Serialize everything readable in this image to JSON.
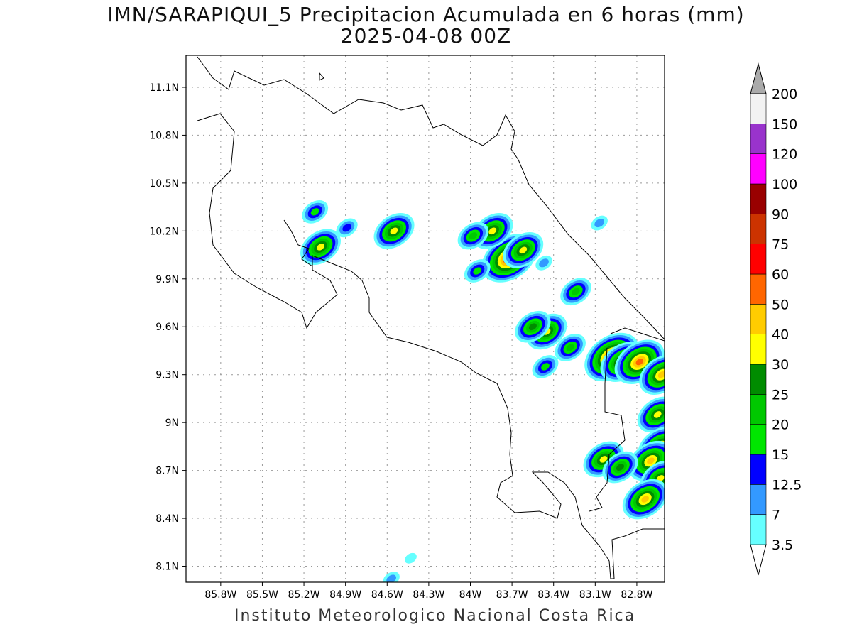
{
  "title": {
    "line1": "IMN/SARAPIQUI_5 Precipitacion Acumulada en 6 horas (mm)",
    "line2": "2025-04-08 00Z"
  },
  "footer": "Instituto Meteorologico Nacional Costa Rica",
  "map": {
    "lon_range": [
      -86.05,
      -82.6
    ],
    "lat_range": [
      8.0,
      11.3
    ],
    "x_ticks": [
      -85.8,
      -85.5,
      -85.2,
      -84.9,
      -84.6,
      -84.3,
      -84.0,
      -83.7,
      -83.4,
      -83.1,
      -82.8
    ],
    "x_tick_labels": [
      "85.8W",
      "85.5W",
      "85.2W",
      "84.9W",
      "84.6W",
      "84.3W",
      "84W",
      "83.7W",
      "83.4W",
      "83.1W",
      "82.8W"
    ],
    "y_ticks": [
      8.1,
      8.4,
      8.7,
      9.0,
      9.3,
      9.6,
      9.9,
      10.2,
      10.5,
      10.8,
      11.1
    ],
    "y_tick_labels": [
      "8.1N",
      "8.4N",
      "8.7N",
      "9N",
      "9.3N",
      "9.6N",
      "9.9N",
      "10.2N",
      "10.5N",
      "10.8N",
      "11.1N"
    ],
    "grid": true,
    "grid_style": "dotted"
  },
  "colorbar": {
    "levels": [
      "3.5",
      "7",
      "12.5",
      "15",
      "20",
      "25",
      "30",
      "40",
      "50",
      "60",
      "75",
      "90",
      "100",
      "120",
      "150",
      "200"
    ],
    "colors": [
      "#66ffff",
      "#3399ff",
      "#0000ff",
      "#00e600",
      "#00c800",
      "#008c00",
      "#ffff00",
      "#ffcc00",
      "#ff6600",
      "#ff0000",
      "#cc3300",
      "#990000",
      "#ff00ff",
      "#9933cc",
      "#f2f2f2",
      "#aaaaaa"
    ],
    "under_color": "#ffffff",
    "over_color": "#aaaaaa"
  },
  "precip_cells": [
    {
      "lon": -84.55,
      "lat": 10.2,
      "mm": 35
    },
    {
      "lon": -83.72,
      "lat": 10.03,
      "mm": 65
    },
    {
      "lon": -83.62,
      "lat": 10.08,
      "mm": 30
    },
    {
      "lon": -83.84,
      "lat": 10.2,
      "mm": 30
    },
    {
      "lon": -83.98,
      "lat": 10.17,
      "mm": 20
    },
    {
      "lon": -83.95,
      "lat": 9.95,
      "mm": 15
    },
    {
      "lon": -85.08,
      "lat": 10.1,
      "mm": 30
    },
    {
      "lon": -85.12,
      "lat": 10.32,
      "mm": 15
    },
    {
      "lon": -84.89,
      "lat": 10.22,
      "mm": 12.5
    },
    {
      "lon": -83.45,
      "lat": 9.57,
      "mm": 30
    },
    {
      "lon": -83.55,
      "lat": 9.6,
      "mm": 25
    },
    {
      "lon": -83.28,
      "lat": 9.47,
      "mm": 20
    },
    {
      "lon": -82.98,
      "lat": 9.41,
      "mm": 65
    },
    {
      "lon": -82.9,
      "lat": 9.38,
      "mm": 40
    },
    {
      "lon": -82.78,
      "lat": 9.38,
      "mm": 50
    },
    {
      "lon": -82.62,
      "lat": 9.3,
      "mm": 40
    },
    {
      "lon": -82.65,
      "lat": 9.05,
      "mm": 30
    },
    {
      "lon": -82.63,
      "lat": 8.85,
      "mm": 40
    },
    {
      "lon": -82.7,
      "lat": 8.76,
      "mm": 40
    },
    {
      "lon": -82.63,
      "lat": 8.65,
      "mm": 30
    },
    {
      "lon": -82.74,
      "lat": 8.52,
      "mm": 40
    },
    {
      "lon": -83.04,
      "lat": 8.77,
      "mm": 30
    },
    {
      "lon": -82.92,
      "lat": 8.72,
      "mm": 25
    },
    {
      "lon": -83.24,
      "lat": 9.82,
      "mm": 20
    },
    {
      "lon": -83.46,
      "lat": 9.35,
      "mm": 15
    },
    {
      "lon": -84.43,
      "lat": 8.15,
      "mm": 3.5
    },
    {
      "lon": -84.57,
      "lat": 8.02,
      "mm": 7
    },
    {
      "lon": -83.47,
      "lat": 10.0,
      "mm": 7
    },
    {
      "lon": -83.07,
      "lat": 10.25,
      "mm": 7
    }
  ]
}
